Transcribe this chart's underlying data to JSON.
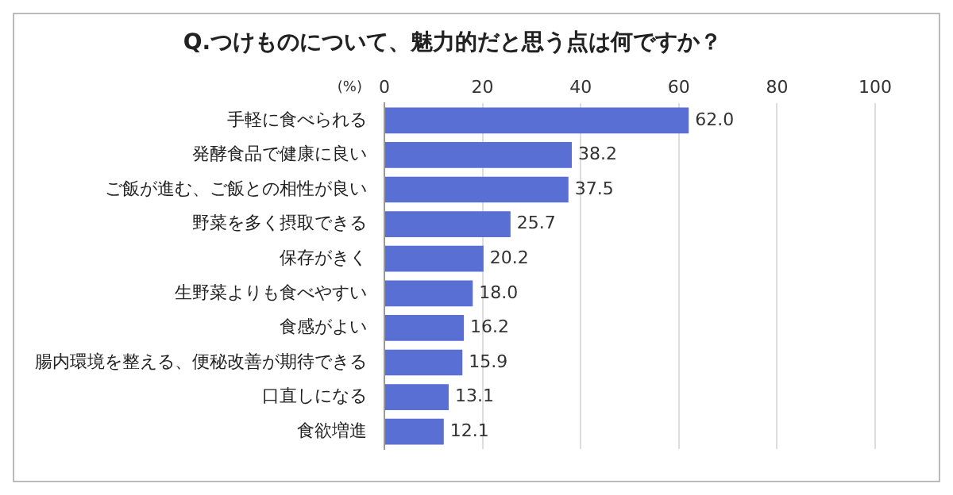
{
  "chart_data": {
    "type": "bar",
    "orientation": "horizontal",
    "title": "Q.つけものについて、魅力的だと思う点は何ですか？",
    "xlabel": "(%)",
    "categories": [
      "手軽に食べられる",
      "発酵食品で健康に良い",
      "ご飯が進む、ご飯との相性が良い",
      "野菜を多く摂取できる",
      "保存がきく",
      "生野菜よりも食べやすい",
      "食感がよい",
      "腸内環境を整える、便秘改善が期待できる",
      "口直しになる",
      "食欲増進"
    ],
    "values": [
      62.0,
      38.2,
      37.5,
      25.7,
      20.2,
      18.0,
      16.2,
      15.9,
      13.1,
      12.1
    ],
    "value_labels": [
      "62.0",
      "38.2",
      "37.5",
      "25.7",
      "20.2",
      "18.0",
      "16.2",
      "15.9",
      "13.1",
      "12.1"
    ],
    "color": "#5a6fd4",
    "xlim": [
      0,
      100
    ],
    "xticks": [
      0,
      20,
      40,
      60,
      80,
      100
    ],
    "grid": "x"
  }
}
